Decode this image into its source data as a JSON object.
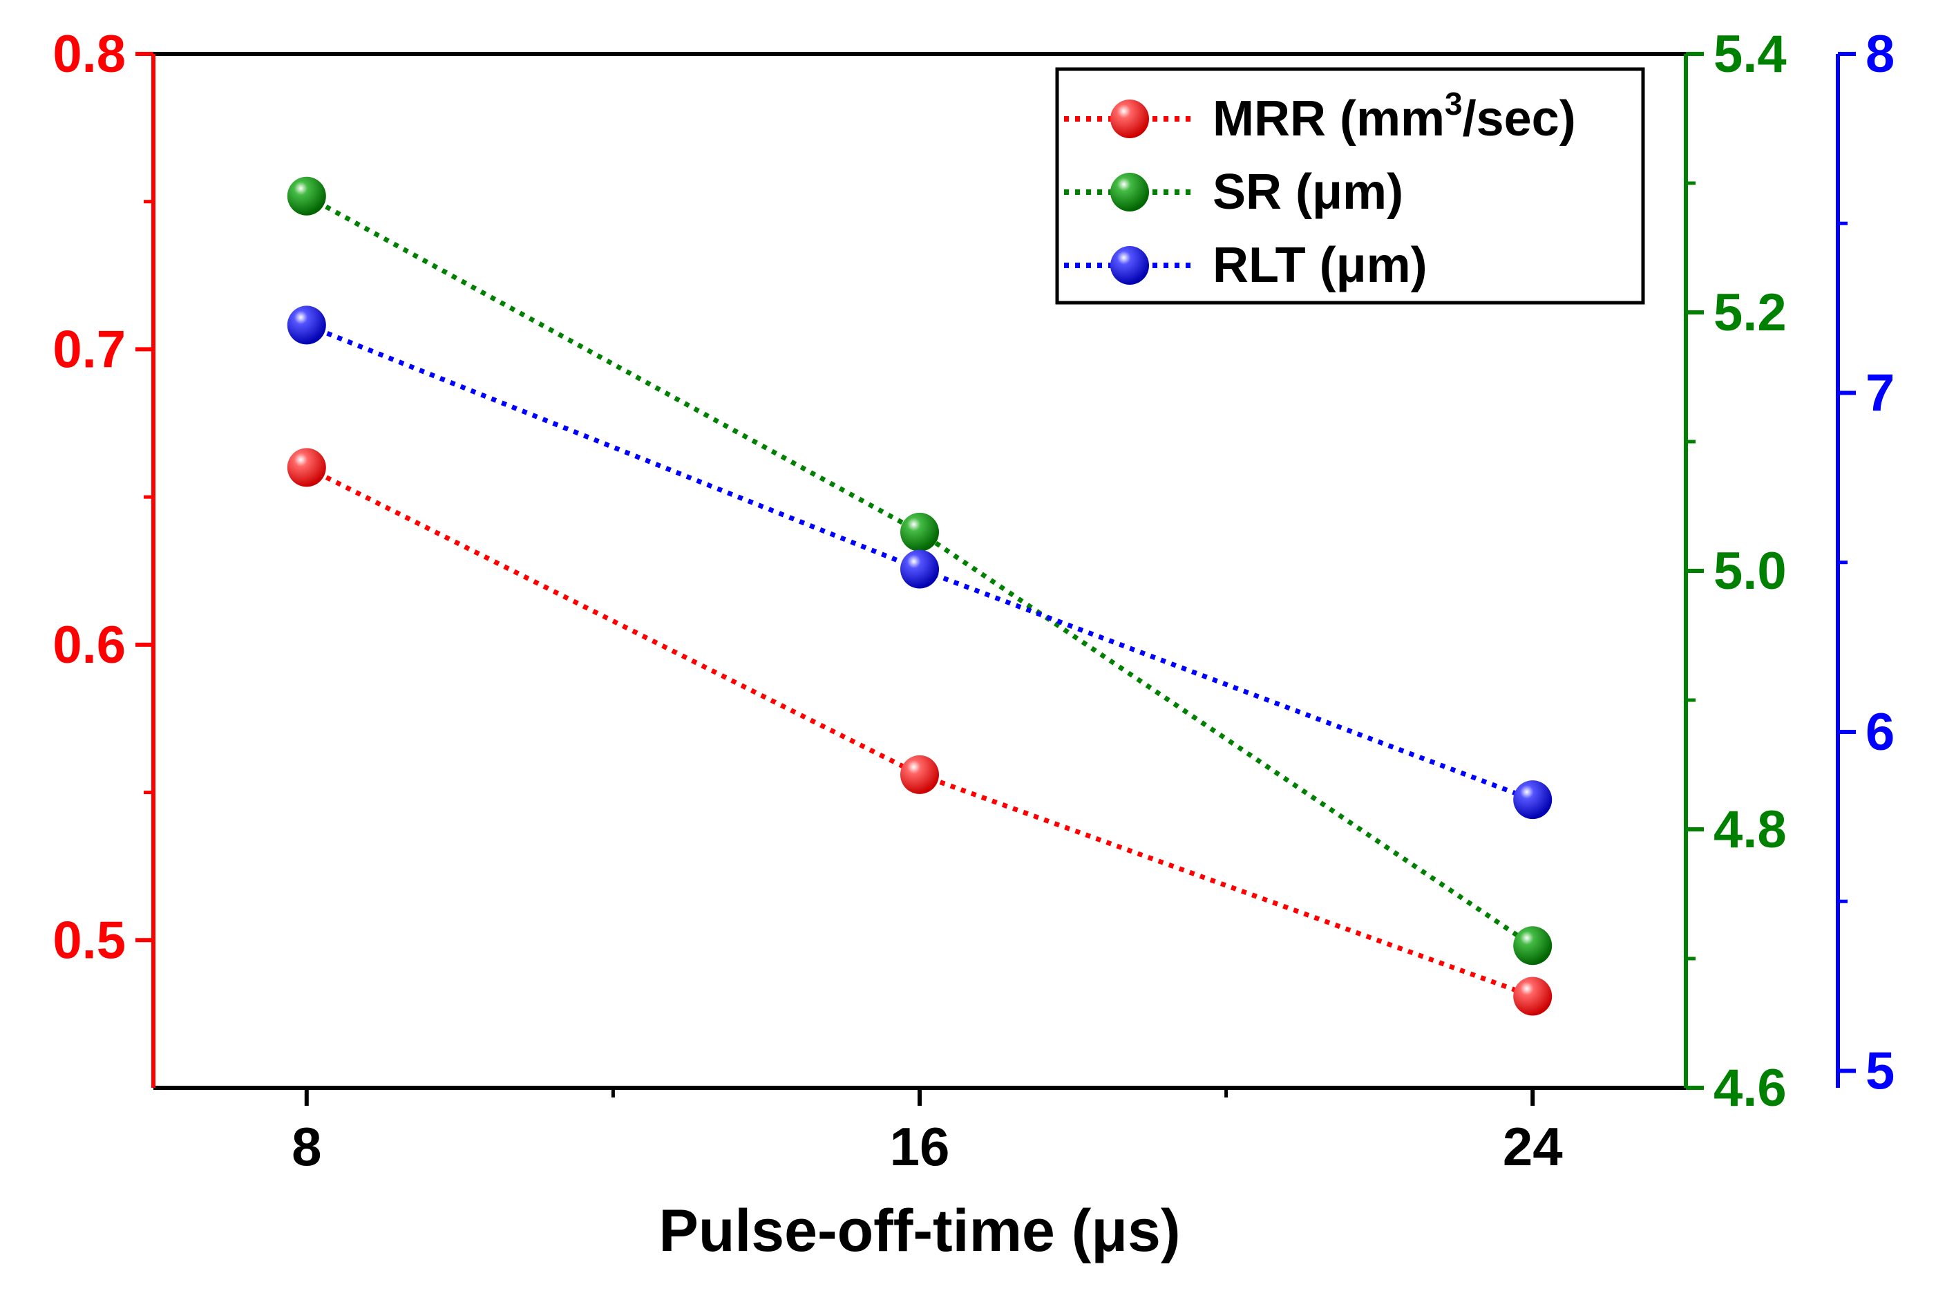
{
  "chart_data": {
    "type": "line",
    "title": "",
    "xlabel": "Pulse-off-time (μs)",
    "x": [
      8,
      16,
      24
    ],
    "xlim": [
      6,
      26
    ],
    "x_ticks": [
      8,
      16,
      24
    ],
    "x_tick_labels": [
      "8",
      "16",
      "24"
    ],
    "colors": {
      "mrr": "#ff0000",
      "sr": "#008000",
      "rlt": "#0000ff"
    },
    "axes": {
      "left": {
        "series": "mrr",
        "ylim": [
          0.45,
          0.8
        ],
        "ticks": [
          0.5,
          0.6,
          0.7,
          0.8
        ],
        "tick_labels": [
          "0.5",
          "0.6",
          "0.7",
          "0.8"
        ]
      },
      "right1": {
        "series": "sr",
        "ylim": [
          4.6,
          5.4
        ],
        "ticks": [
          4.6,
          4.8,
          5.0,
          5.2,
          5.4
        ],
        "tick_labels": [
          "4.6",
          "4.8",
          "5.0",
          "5.2",
          "5.4"
        ]
      },
      "right2": {
        "series": "rlt",
        "ylim": [
          4.95,
          8.0
        ],
        "ticks": [
          5,
          6,
          7,
          8
        ],
        "tick_labels": [
          "5",
          "6",
          "7",
          "8"
        ]
      }
    },
    "series": [
      {
        "key": "mrr",
        "name": "MRR (mm3/sec)",
        "name_main": "MRR (mm",
        "name_sup": "3",
        "name_end": "/sec)",
        "axis": "left",
        "color": "#ff0000",
        "values": [
          0.66,
          0.556,
          0.481
        ]
      },
      {
        "key": "sr",
        "name": "SR (μm)",
        "axis": "right1",
        "color": "#008000",
        "values": [
          5.29,
          5.03,
          4.71
        ]
      },
      {
        "key": "rlt",
        "name": "RLT (μm)",
        "axis": "right2",
        "color": "#0000ff",
        "values": [
          7.2,
          6.48,
          5.8
        ]
      }
    ],
    "legend_position": "top-right",
    "grid": false
  }
}
